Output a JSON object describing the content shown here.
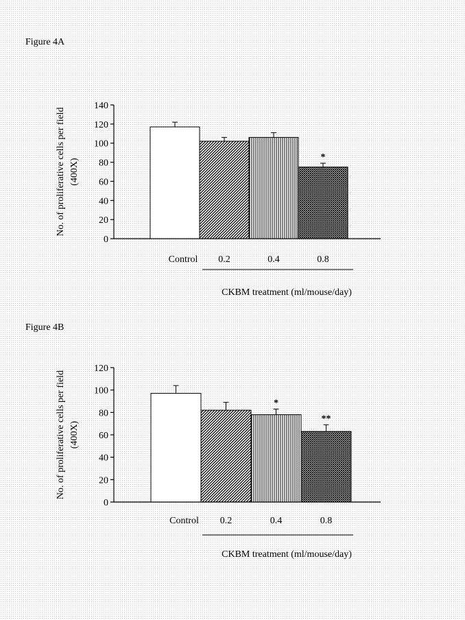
{
  "figures": [
    {
      "label": "Figure 4A",
      "chart_data": {
        "type": "bar",
        "categories": [
          "Control",
          "0.2",
          "0.4",
          "0.8"
        ],
        "values": [
          117,
          102,
          106,
          75
        ],
        "errors": [
          5,
          4,
          5,
          4
        ],
        "significance": [
          "",
          "",
          "",
          "*"
        ],
        "patterns": [
          "blank",
          "diagonal",
          "vertical",
          "crosshatch"
        ],
        "title": "",
        "ylabel_line1": "No. of proliferative cells per field",
        "ylabel_line2": "(400X)",
        "xlabel": "CKBM treatment (ml/mouse/day)",
        "ylim": [
          0,
          140
        ],
        "yticks": [
          0,
          20,
          40,
          60,
          80,
          100,
          120,
          140
        ],
        "grid": false
      }
    },
    {
      "label": "Figure 4B",
      "chart_data": {
        "type": "bar",
        "categories": [
          "Control",
          "0.2",
          "0.4",
          "0.8"
        ],
        "values": [
          97,
          82,
          78,
          63
        ],
        "errors": [
          7,
          7,
          5,
          6
        ],
        "significance": [
          "",
          "",
          "*",
          "**"
        ],
        "patterns": [
          "blank",
          "diagonal",
          "vertical",
          "crosshatch"
        ],
        "title": "",
        "ylabel_line1": "No. of proliferative cells per field",
        "ylabel_line2": "(400X)",
        "xlabel": "CKBM treatment (ml/mouse/day)",
        "ylim": [
          0,
          120
        ],
        "yticks": [
          0,
          20,
          40,
          60,
          80,
          100,
          120
        ],
        "grid": false
      }
    }
  ]
}
